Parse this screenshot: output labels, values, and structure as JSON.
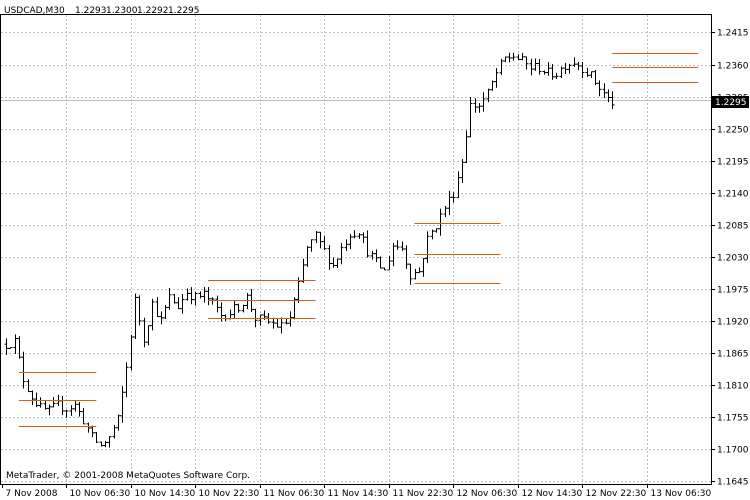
{
  "header": {
    "symbol": "USDCAD,M30",
    "open": "1.2293",
    "high": "1.2300",
    "low": "1.2292",
    "close": "1.2295"
  },
  "copyright": "MetaTrader, © 2001-2008 MetaQuotes Software Corp.",
  "price_marker": "1.2295",
  "colors": {
    "background": "#ffffff",
    "grid": "#c0c0c0",
    "bars": "#000000",
    "boxes": "#e05a14",
    "bid_line": "#c0c0c0",
    "marker_bg": "#000000",
    "marker_text": "#ffffff"
  },
  "chart_data": {
    "type": "bar",
    "title": "USDCAD,M30",
    "ylim": [
      1.164,
      1.2445
    ],
    "y_ticks": [
      "1.2415",
      "1.2360",
      "1.2305",
      "1.2250",
      "1.2195",
      "1.2140",
      "1.2085",
      "1.2030",
      "1.1975",
      "1.1920",
      "1.1865",
      "1.1810",
      "1.1755",
      "1.1700",
      "1.1645"
    ],
    "x_ticks": [
      "7 Nov 2008",
      "10 Nov 06:30",
      "10 Nov 14:30",
      "10 Nov 22:30",
      "11 Nov 06:30",
      "11 Nov 14:30",
      "11 Nov 22:30",
      "12 Nov 06:30",
      "12 Nov 14:30",
      "12 Nov 22:30",
      "13 Nov 06:30"
    ],
    "grid": true,
    "current_price": 1.2295,
    "anchors": [
      [
        0,
        1.188
      ],
      [
        2,
        1.1885
      ],
      [
        4,
        1.182
      ],
      [
        6,
        1.179
      ],
      [
        8,
        1.177
      ],
      [
        10,
        1.1765
      ],
      [
        12,
        1.1775
      ],
      [
        14,
        1.177
      ],
      [
        16,
        1.1775
      ],
      [
        18,
        1.175
      ],
      [
        20,
        1.172
      ],
      [
        22,
        1.1705
      ],
      [
        24,
        1.172
      ],
      [
        26,
        1.175
      ],
      [
        28,
        1.184
      ],
      [
        30,
        1.1955
      ],
      [
        32,
        1.189
      ],
      [
        34,
        1.195
      ],
      [
        36,
        1.192
      ],
      [
        38,
        1.196
      ],
      [
        40,
        1.1945
      ],
      [
        42,
        1.197
      ],
      [
        44,
        1.196
      ],
      [
        46,
        1.1965
      ],
      [
        48,
        1.195
      ],
      [
        50,
        1.193
      ],
      [
        52,
        1.1935
      ],
      [
        54,
        1.1945
      ],
      [
        56,
        1.196
      ],
      [
        58,
        1.1925
      ],
      [
        60,
        1.192
      ],
      [
        62,
        1.1915
      ],
      [
        64,
        1.191
      ],
      [
        66,
        1.1925
      ],
      [
        68,
        1.198
      ],
      [
        70,
        1.2045
      ],
      [
        72,
        1.2065
      ],
      [
        74,
        1.204
      ],
      [
        76,
        1.2015
      ],
      [
        78,
        1.2045
      ],
      [
        80,
        1.207
      ],
      [
        82,
        1.2075
      ],
      [
        84,
        1.204
      ],
      [
        86,
        1.202
      ],
      [
        88,
        1.2005
      ],
      [
        90,
        1.205
      ],
      [
        92,
        1.2045
      ],
      [
        94,
        1.2
      ],
      [
        96,
        1.2005
      ],
      [
        98,
        1.206
      ],
      [
        100,
        1.2085
      ],
      [
        102,
        1.2115
      ],
      [
        104,
        1.214
      ],
      [
        106,
        1.2195
      ],
      [
        108,
        1.229
      ],
      [
        110,
        1.229
      ],
      [
        112,
        1.231
      ],
      [
        114,
        1.2345
      ],
      [
        116,
        1.237
      ],
      [
        118,
        1.2375
      ],
      [
        120,
        1.2365
      ],
      [
        122,
        1.2355
      ],
      [
        124,
        1.2355
      ],
      [
        126,
        1.2345
      ],
      [
        128,
        1.2345
      ],
      [
        130,
        1.236
      ],
      [
        132,
        1.2365
      ],
      [
        134,
        1.2355
      ],
      [
        136,
        1.234
      ],
      [
        138,
        1.232
      ],
      [
        140,
        1.23
      ],
      [
        141,
        1.2295
      ]
    ],
    "boxes": [
      {
        "from": 3,
        "to": 21,
        "lines": [
          1.1833,
          1.1785,
          1.174
        ]
      },
      {
        "from": 47,
        "to": 72,
        "lines": [
          1.199,
          1.1955,
          1.1925
        ]
      },
      {
        "from": 95,
        "to": 115,
        "lines": [
          1.2088,
          1.2035,
          1.1985
        ]
      },
      {
        "from": 141,
        "to": 161,
        "lines": [
          1.238,
          1.2355,
          1.233
        ]
      }
    ]
  }
}
